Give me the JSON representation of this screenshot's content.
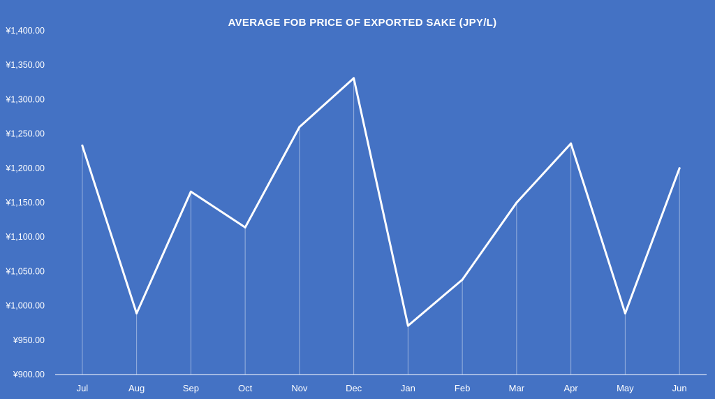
{
  "chart_data": {
    "type": "line",
    "title": "AVERAGE FOB PRICE OF EXPORTED SAKE  (JPY/L)",
    "xlabel": "",
    "ylabel": "",
    "categories": [
      "Jul",
      "Aug",
      "Sep",
      "Oct",
      "Nov",
      "Dec",
      "Jan",
      "Feb",
      "Mar",
      "Apr",
      "May",
      "Jun"
    ],
    "series": [
      {
        "values": [
          1233,
          989,
          1166,
          1114,
          1260,
          1331,
          971,
          1038,
          1150,
          1236,
          989,
          1200
        ]
      }
    ],
    "ylim": [
      900,
      1400
    ],
    "yticks": [
      900,
      950,
      1000,
      1050,
      1100,
      1150,
      1200,
      1250,
      1300,
      1350,
      1400
    ],
    "ytick_labels": [
      "¥900.00",
      "¥950.00",
      "¥1,000.00",
      "¥1,050.00",
      "¥1,100.00",
      "¥1,150.00",
      "¥1,200.00",
      "¥1,250.00",
      "¥1,300.00",
      "¥1,350.00",
      "¥1,400.00"
    ],
    "grid": false,
    "drop_lines": true,
    "legend": "none",
    "colors": {
      "background": "#4472C4",
      "line": "#FFFFFF",
      "text": "#FFFFFF"
    }
  }
}
